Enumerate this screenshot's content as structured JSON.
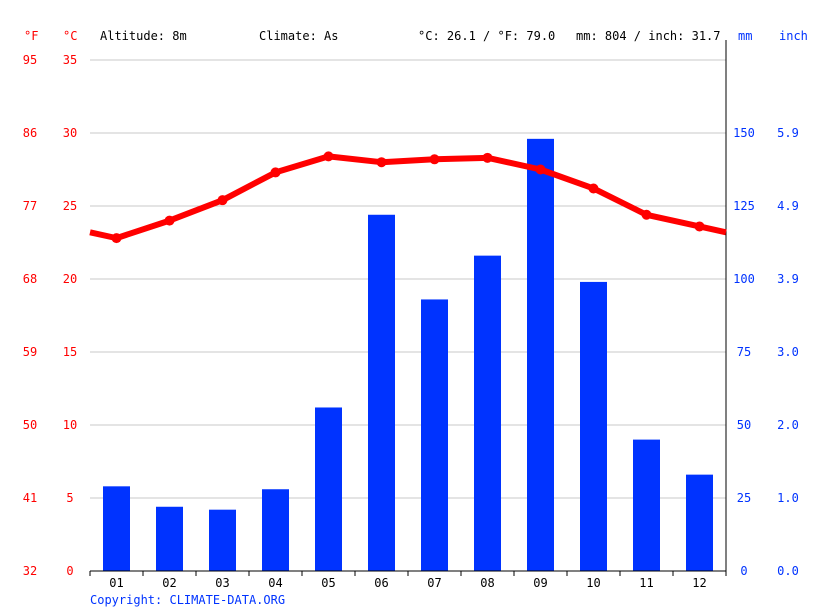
{
  "header": {
    "unit_f": "°F",
    "unit_c": "°C",
    "altitude": "Altitude: 8m",
    "climate": "Climate: As",
    "temp_summary": "°C: 26.1 / °F: 79.0",
    "precip_summary": "mm: 804 / inch: 31.7",
    "unit_mm": "mm",
    "unit_inch": "inch"
  },
  "copyright": "Copyright: CLIMATE-DATA.ORG",
  "colors": {
    "temperature": "#ff0000",
    "precipitation": "#0033ff",
    "grid": "#c8c8c8",
    "axis": "#000000"
  },
  "chart_data": {
    "type": "bar",
    "categories": [
      "01",
      "02",
      "03",
      "04",
      "05",
      "06",
      "07",
      "08",
      "09",
      "10",
      "11",
      "12"
    ],
    "series": [
      {
        "type": "bar",
        "axis": "right",
        "unit": "mm",
        "values": [
          29,
          22,
          21,
          28,
          56,
          122,
          93,
          108,
          148,
          99,
          45,
          33
        ]
      },
      {
        "type": "line",
        "axis": "left",
        "unit": "°C",
        "values": [
          22.8,
          24.0,
          25.4,
          27.3,
          28.4,
          28.0,
          28.2,
          28.3,
          27.5,
          26.2,
          24.4,
          23.6
        ],
        "edge_start": 23.2,
        "edge_end": 23.2
      }
    ],
    "yleft": {
      "label": "°C",
      "ylim": [
        0,
        35
      ],
      "ticks": [
        "0",
        "5",
        "10",
        "15",
        "20",
        "25",
        "30",
        "35"
      ]
    },
    "yleft_outer": {
      "label": "°F",
      "ticks": [
        "32",
        "41",
        "50",
        "59",
        "68",
        "77",
        "86",
        "95"
      ]
    },
    "yright": {
      "label": "mm",
      "ylim": [
        0,
        175
      ],
      "ticks": [
        "0",
        "25",
        "50",
        "75",
        "100",
        "125",
        "150"
      ]
    },
    "yright_outer": {
      "label": "inch",
      "ticks": [
        "0.0",
        "1.0",
        "2.0",
        "3.0",
        "3.9",
        "4.9",
        "5.9"
      ]
    },
    "grid": true
  }
}
